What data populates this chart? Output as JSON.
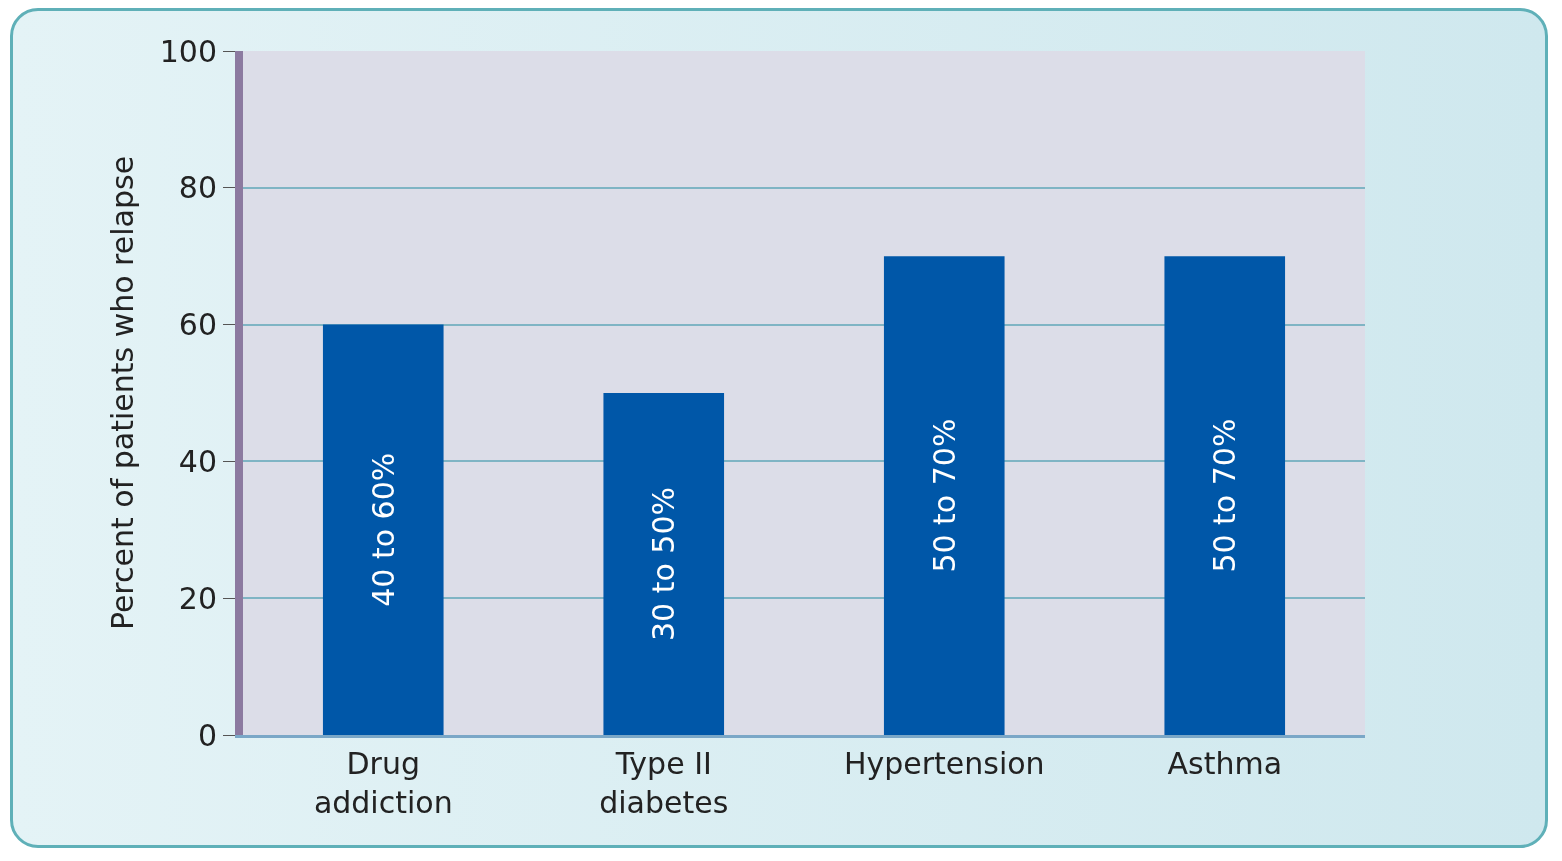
{
  "chart_data": {
    "type": "bar",
    "ylabel": "Percent of patients who relapse",
    "categories": [
      "Drug addiction",
      "Type II diabetes",
      "Hypertension",
      "Asthma"
    ],
    "values": [
      60,
      50,
      70,
      70
    ],
    "value_labels": [
      "40 to 60%",
      "30 to 50%",
      "50 to 70%",
      "50 to 70%"
    ],
    "color": "#0057a8",
    "ylim": [
      0,
      100
    ],
    "yticks": [
      0,
      20,
      40,
      60,
      80,
      100
    ],
    "grid": "y"
  }
}
